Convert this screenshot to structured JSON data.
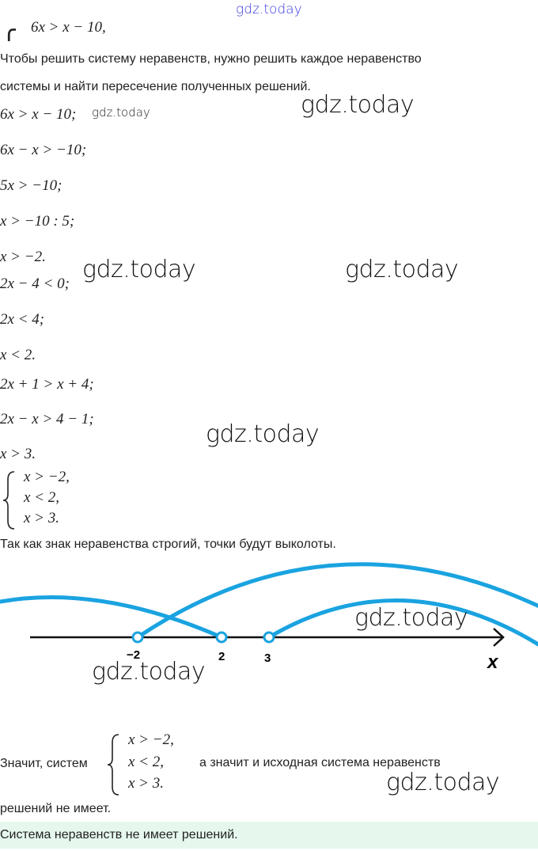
{
  "watermark": "gdz.today",
  "top_system": "6x > x − 10,",
  "intro": [
    "Чтобы решить систему неравенств, нужно решить каждое неравенство",
    "системы и найти пересечение полученных решений."
  ],
  "steps": [
    "6x > x − 10;",
    "6x − x > −10;",
    "5x > −10;",
    "x > −10 : 5;",
    "x > −2.",
    "2x − 4 < 0;",
    "2x < 4;",
    "x < 2.",
    "2x + 1 > x + 4;",
    "2x − x > 4 − 1;",
    "x > 3."
  ],
  "system": [
    "x > −2,",
    "x < 2,",
    "x > 3."
  ],
  "note": "Так как знак неравенства строгий, точки будут выколоты.",
  "number_line": {
    "points": [
      "−2",
      "2",
      "3"
    ],
    "axis_label": "x",
    "accent": "#1aa3e0"
  },
  "conclusion": {
    "prefix": "Значит, систем",
    "suffix": "а значит и исходная система неравенств",
    "end": "решений не имеет."
  },
  "answer": "Система неравенств не имеет решений.",
  "answer_bg": "#e6f8ee"
}
